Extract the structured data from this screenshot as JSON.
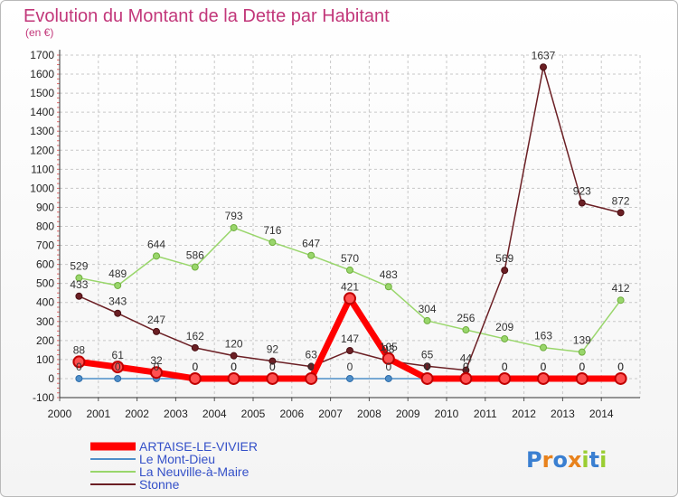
{
  "chart_data": {
    "type": "line",
    "title": "Evolution du Montant de la Dette par Habitant",
    "subtitle": "(en €)",
    "xlabel": "",
    "ylabel": "",
    "x": [
      "2000",
      "2001",
      "2002",
      "2003",
      "2004",
      "2005",
      "2006",
      "2007",
      "2008",
      "2009",
      "2010",
      "2011",
      "2012",
      "2013",
      "2014"
    ],
    "y_ticks": [
      "-100",
      "0",
      "100",
      "200",
      "300",
      "400",
      "500",
      "600",
      "700",
      "800",
      "900",
      "1000",
      "1100",
      "1200",
      "1300",
      "1400",
      "1500",
      "1600",
      "1700"
    ],
    "ylim": [
      -100,
      1700
    ],
    "grid": true,
    "legend": "bottom-left",
    "series": [
      {
        "name": "ARTAISE-LE-VIVIER",
        "color": "#ff0000",
        "values": [
          88,
          61,
          32,
          0,
          0,
          0,
          0,
          421,
          105,
          0,
          0,
          0,
          0,
          0,
          0
        ],
        "labels": [
          "88",
          "61",
          "32",
          "0",
          "0",
          "0",
          "0",
          "421",
          "105",
          "0",
          "0",
          "0",
          "0",
          "0",
          "0"
        ]
      },
      {
        "name": "Le Mont-Dieu",
        "color": "#4f8fc9",
        "values": [
          0,
          0,
          0,
          0,
          0,
          0,
          0,
          0,
          0,
          0,
          0,
          0,
          0,
          0,
          0
        ],
        "labels": [
          "0",
          "0",
          "0",
          "0",
          "0",
          "0",
          "0",
          "0",
          "0",
          "0",
          "0",
          "0",
          "0",
          "0",
          "0"
        ]
      },
      {
        "name": "La Neuville-à-Maire",
        "color": "#99d66b",
        "values": [
          529,
          489,
          644,
          586,
          793,
          716,
          647,
          570,
          483,
          304,
          256,
          209,
          163,
          139,
          412
        ],
        "labels": [
          "529",
          "489",
          "644",
          "586",
          "793",
          "716",
          "647",
          "570",
          "483",
          "304",
          "256",
          "209",
          "163",
          "139",
          "412"
        ]
      },
      {
        "name": "Stonne",
        "color": "#6b1f24",
        "values": [
          433,
          343,
          247,
          162,
          120,
          92,
          63,
          147,
          93,
          65,
          44,
          569,
          1637,
          923,
          872
        ],
        "labels": [
          "433",
          "343",
          "247",
          "162",
          "120",
          "92",
          "63",
          "147",
          "93",
          "65",
          "44",
          "569",
          "1637",
          "923",
          "872"
        ]
      }
    ]
  },
  "logo": {
    "text": "Proxiti"
  }
}
